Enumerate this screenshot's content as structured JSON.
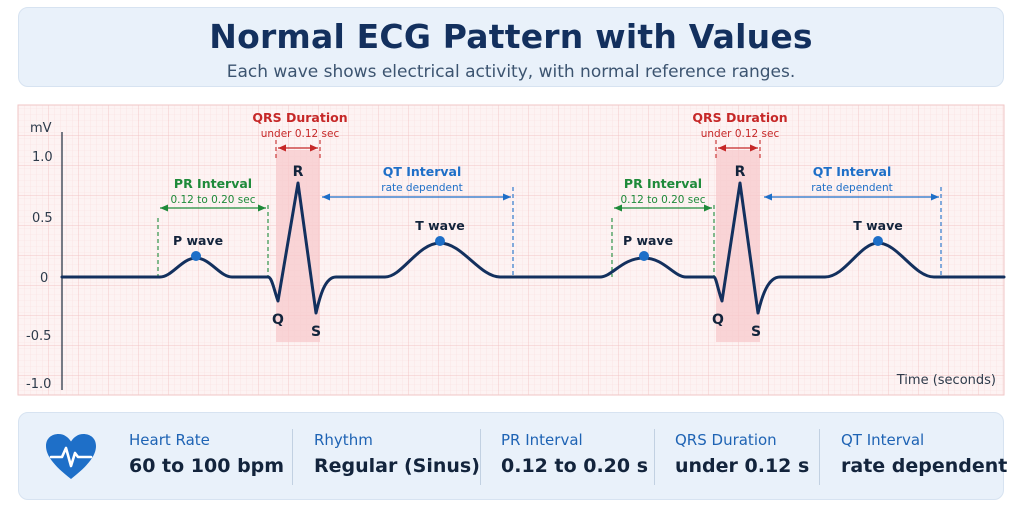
{
  "title": "Normal ECG Pattern with Values",
  "subtitle": "Each wave shows electrical activity, with normal reference ranges.",
  "axes": {
    "y_unit": "mV",
    "y_ticks": [
      "1.0",
      "0.5",
      "0",
      "-0.5",
      "-1.0"
    ],
    "x_label": "Time (seconds)"
  },
  "beats": [
    {
      "pr": {
        "title": "PR Interval",
        "range": "0.12 to 0.20 sec"
      },
      "qrs": {
        "title": "QRS Duration",
        "range": "under 0.12 sec"
      },
      "qt": {
        "title": "QT Interval",
        "range": "rate dependent"
      },
      "waves": {
        "p": "P wave",
        "q": "Q",
        "r": "R",
        "s": "S",
        "t": "T wave"
      }
    },
    {
      "pr": {
        "title": "PR Interval",
        "range": "0.12 to 0.20 sec"
      },
      "qrs": {
        "title": "QRS Duration",
        "range": "under 0.12 sec"
      },
      "qt": {
        "title": "QT Interval",
        "range": "rate dependent"
      },
      "waves": {
        "p": "P wave",
        "q": "Q",
        "r": "R",
        "s": "S",
        "t": "T wave"
      }
    }
  ],
  "summary": [
    {
      "label": "Heart Rate",
      "value": "60 to 100 bpm"
    },
    {
      "label": "Rhythm",
      "value": "Regular (Sinus)"
    },
    {
      "label": "PR Interval",
      "value": "0.12 to 0.20 s"
    },
    {
      "label": "QRS Duration",
      "value": "under 0.12 s"
    },
    {
      "label": "QT Interval",
      "value": "rate dependent"
    }
  ],
  "icons": {
    "summary": "heart-ecg-icon"
  },
  "colors": {
    "trace": "#13305e",
    "pr": "#1e8a3a",
    "qrs": "#c62828",
    "qt": "#1e6fc8",
    "grid": "#f6cfcf",
    "paper": "#fdf2f2"
  }
}
